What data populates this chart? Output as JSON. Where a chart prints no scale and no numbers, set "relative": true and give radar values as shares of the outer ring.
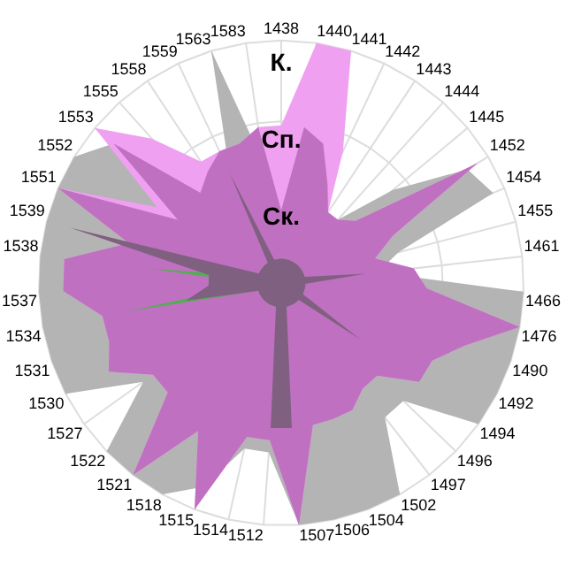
{
  "chart_data": {
    "type": "radar",
    "relative": true,
    "grid": true,
    "marker": "none",
    "categories": [
      "1438",
      "1440",
      "1441",
      "1442",
      "1443",
      "1444",
      "1445",
      "1452",
      "1454",
      "1455",
      "1461",
      "1466",
      "1476",
      "1490",
      "1492",
      "1494",
      "1496",
      "1497",
      "1502",
      "1504",
      "1506",
      "1507",
      "1512",
      "1514",
      "1515",
      "1518",
      "1521",
      "1522",
      "1527",
      "1530",
      "1531",
      "1534",
      "1537",
      "1538",
      "1539",
      "1551",
      "1552",
      "1553",
      "1555",
      "1558",
      "1559",
      "1563",
      "1583"
    ],
    "annotations": [
      "К.",
      "Сп.",
      "Ск."
    ],
    "series": [
      {
        "color": "#b4b4b4",
        "values": [
          0.5,
          0.5,
          0.6,
          0.5,
          0.3,
          0.35,
          0.6,
          0.9,
          0.95,
          0.5,
          0.4,
          1,
          1,
          1,
          1,
          1,
          0.7,
          0.7,
          1,
          1,
          1,
          1,
          0.7,
          0.7,
          0.9,
          1,
          1,
          1,
          0.7,
          1,
          1,
          1,
          1,
          1,
          1,
          1,
          1,
          0.9,
          0.6,
          0.5,
          0.5,
          1,
          0.5
        ]
      },
      {
        "color": "#f0a0f0",
        "values": [
          0.65,
          1,
          1,
          0.6,
          0.35,
          0.35,
          0.4,
          0.95,
          0.5,
          0.4,
          0.55,
          0.6,
          1,
          0.8,
          0.7,
          0.7,
          0.55,
          0.55,
          0.6,
          0.6,
          0.6,
          1,
          0.65,
          0.65,
          1,
          0.7,
          1,
          0.65,
          0.65,
          0.8,
          0.75,
          0.75,
          0.9,
          0.9,
          0.65,
          1,
          0.6,
          1,
          0.8,
          0.6,
          0.6,
          0.6,
          0.65
        ]
      },
      {
        "color": "#c070c0",
        "values": [
          0.3,
          0.65,
          0.6,
          0.45,
          0.35,
          0.35,
          0.4,
          0.95,
          0.5,
          0.4,
          0.55,
          0.6,
          1,
          0.8,
          0.7,
          0.7,
          0.55,
          0.55,
          0.6,
          0.6,
          0.6,
          1,
          0.65,
          0.65,
          1,
          0.7,
          1,
          0.65,
          0.65,
          0.8,
          0.75,
          0.75,
          0.9,
          0.9,
          0.65,
          1,
          0.5,
          0.9,
          0.5,
          0.55,
          0.6,
          0.6,
          0.65
        ]
      },
      {
        "color": "#50b050",
        "values": [
          0.1,
          0.1,
          0.1,
          0.1,
          0.1,
          0.1,
          0.1,
          0.1,
          0.1,
          0.1,
          0.1,
          0.1,
          0.1,
          0.1,
          0.1,
          0.1,
          0.1,
          0.1,
          0.1,
          0.1,
          0.1,
          0.1,
          0.1,
          0.1,
          0.1,
          0.1,
          0.1,
          0.1,
          0.1,
          0.1,
          0.1,
          0.65,
          0.1,
          0.55,
          0.1,
          0.1,
          0.1,
          0.1,
          0.1,
          0.1,
          0.1,
          0.1,
          0.1
        ]
      },
      {
        "color": "#806080",
        "values": [
          0.1,
          0.1,
          0.1,
          0.1,
          0.1,
          0.1,
          0.1,
          0.1,
          0.1,
          0.1,
          0.35,
          0.1,
          0.1,
          0.1,
          0.1,
          0.4,
          0.1,
          0.1,
          0.1,
          0.1,
          0.1,
          0.6,
          0.6,
          0.1,
          0.1,
          0.1,
          0.1,
          0.1,
          0.1,
          0.1,
          0.1,
          0.4,
          0.3,
          0.3,
          0.9,
          0.1,
          0.1,
          0.1,
          0.1,
          0.1,
          0.5,
          0.1,
          0.1
        ]
      }
    ]
  }
}
